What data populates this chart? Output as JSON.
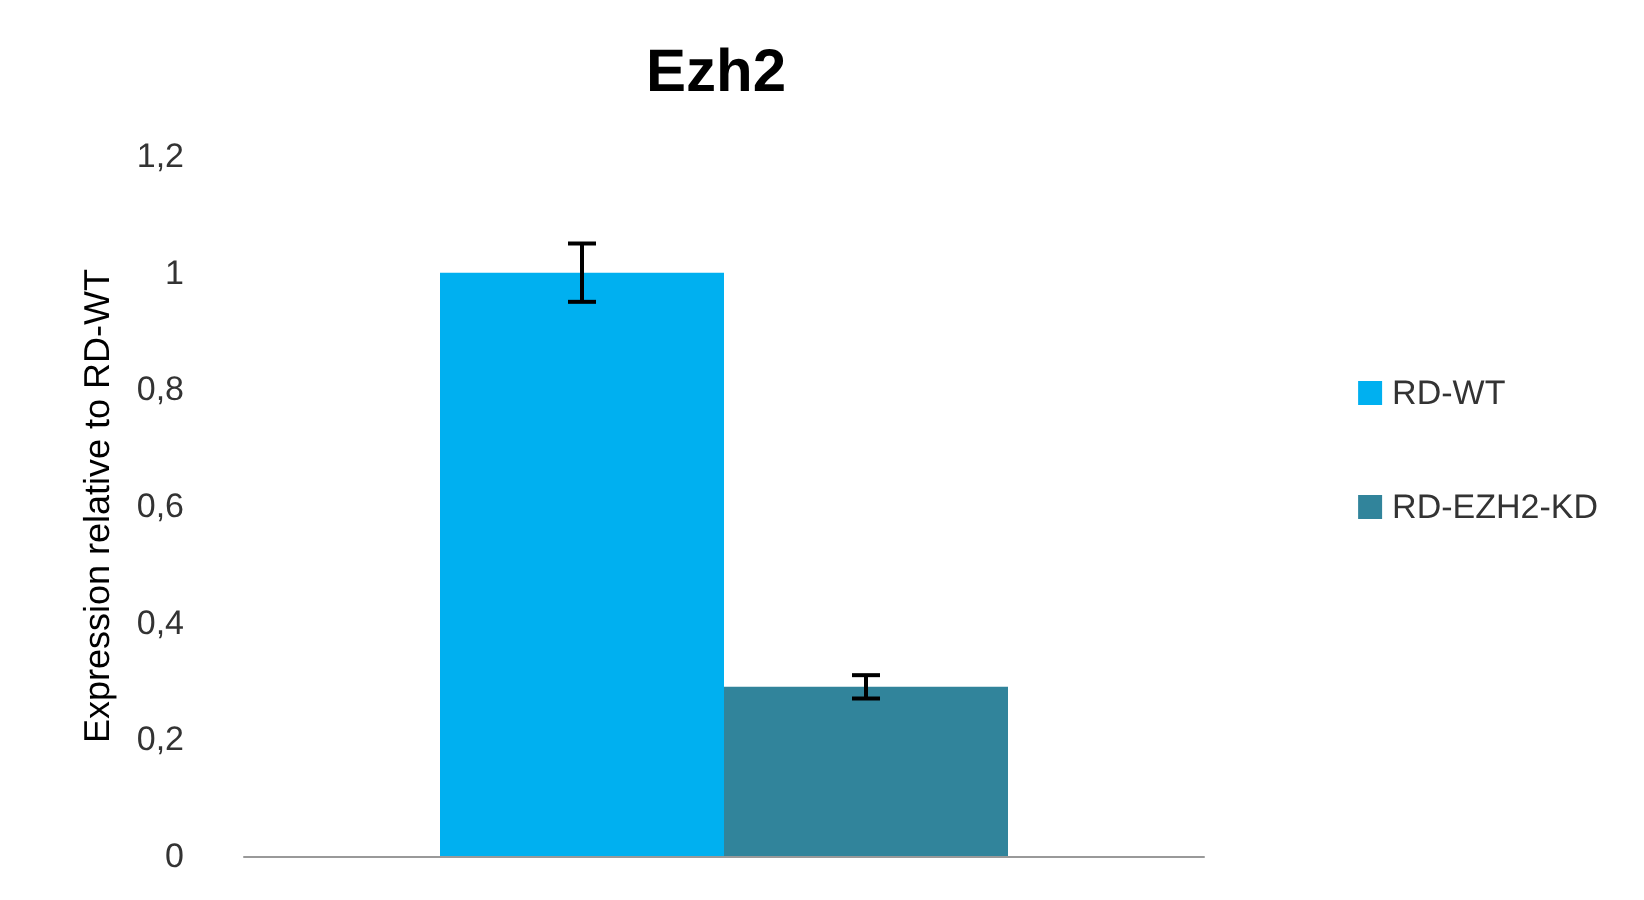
{
  "chart_data": {
    "type": "bar",
    "title": "Ezh2",
    "ylabel": "Expression relative to RD-WT",
    "categories": [
      null
    ],
    "series": [
      {
        "name": "RD-WT",
        "color": "#00b0f0",
        "values": [
          1.0
        ],
        "errors": [
          0.05
        ]
      },
      {
        "name": "RD-EZH2-KD",
        "color": "#31849b",
        "values": [
          0.29
        ],
        "errors": [
          0.02
        ]
      }
    ],
    "ylim": [
      0,
      1.2
    ],
    "yticks": [
      {
        "value": 0,
        "label": "0"
      },
      {
        "value": 0.2,
        "label": "0,2"
      },
      {
        "value": 0.4,
        "label": "0,4"
      },
      {
        "value": 0.6,
        "label": "0,6"
      },
      {
        "value": 0.8,
        "label": "0,8"
      },
      {
        "value": 1,
        "label": "1"
      },
      {
        "value": 1.2,
        "label": "1,2"
      }
    ],
    "grid": false,
    "legend": "right"
  }
}
